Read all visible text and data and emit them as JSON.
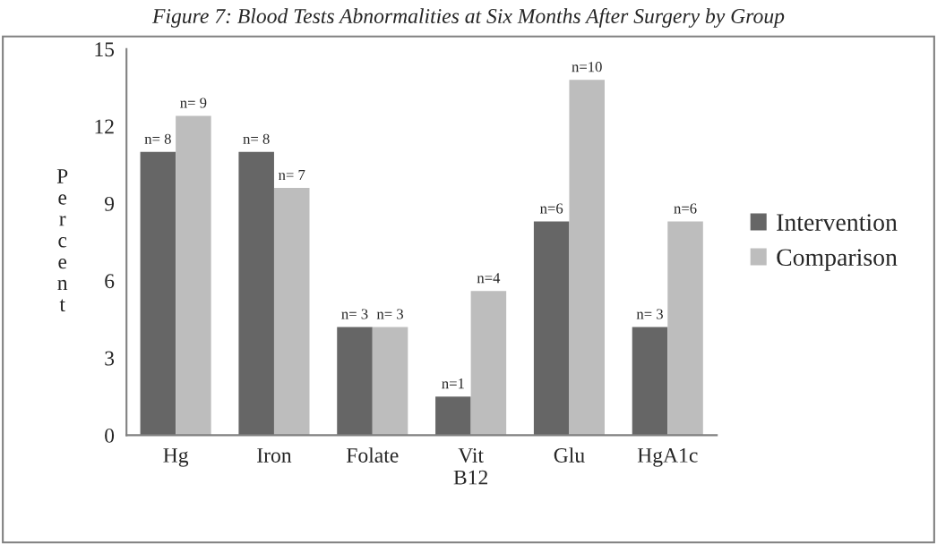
{
  "chart_data": {
    "type": "bar",
    "title": "Figure 7: Blood Tests Abnormalities at Six Months After Surgery by Group",
    "ylabel": "Percent",
    "categories": [
      "Hg",
      "Iron",
      "Folate",
      "Vit\nB12",
      "Glu",
      "HgA1c"
    ],
    "series": [
      {
        "name": "Intervention",
        "color": "#666666",
        "values": [
          11.0,
          11.0,
          4.2,
          1.5,
          8.3,
          4.2
        ]
      },
      {
        "name": "Comparison",
        "color": "#bdbdbd",
        "values": [
          12.4,
          9.6,
          4.2,
          5.6,
          13.8,
          8.3
        ]
      }
    ],
    "annotations": [
      {
        "text": "n= 8",
        "x": "Hg",
        "y": 11.0
      },
      {
        "text": "n= 9",
        "x": "Hg",
        "y": 12.4
      },
      {
        "text": "n= 8",
        "x": "Iron",
        "y": 11.0
      },
      {
        "text": "n= 7",
        "x": "Iron",
        "y": 9.6
      },
      {
        "text": "n= 3",
        "x": "Folate",
        "y": 4.2
      },
      {
        "text": "n= 3",
        "x": "Folate",
        "y": 4.2
      },
      {
        "text": "n=1",
        "x": "Vit\nB12",
        "y": 1.5
      },
      {
        "text": "n=4",
        "x": "Vit\nB12",
        "y": 5.6
      },
      {
        "text": "n=6",
        "x": "Glu",
        "y": 8.3
      },
      {
        "text": "n=10",
        "x": "Glu",
        "y": 13.8
      },
      {
        "text": "n= 3",
        "x": "HgA1c",
        "y": 4.2
      },
      {
        "text": "n=6",
        "x": "HgA1c",
        "y": 8.3
      }
    ],
    "ylim": [
      0,
      15
    ],
    "yticks": [
      0,
      3,
      6,
      9,
      12,
      15
    ],
    "grid": false,
    "legend": "right"
  }
}
